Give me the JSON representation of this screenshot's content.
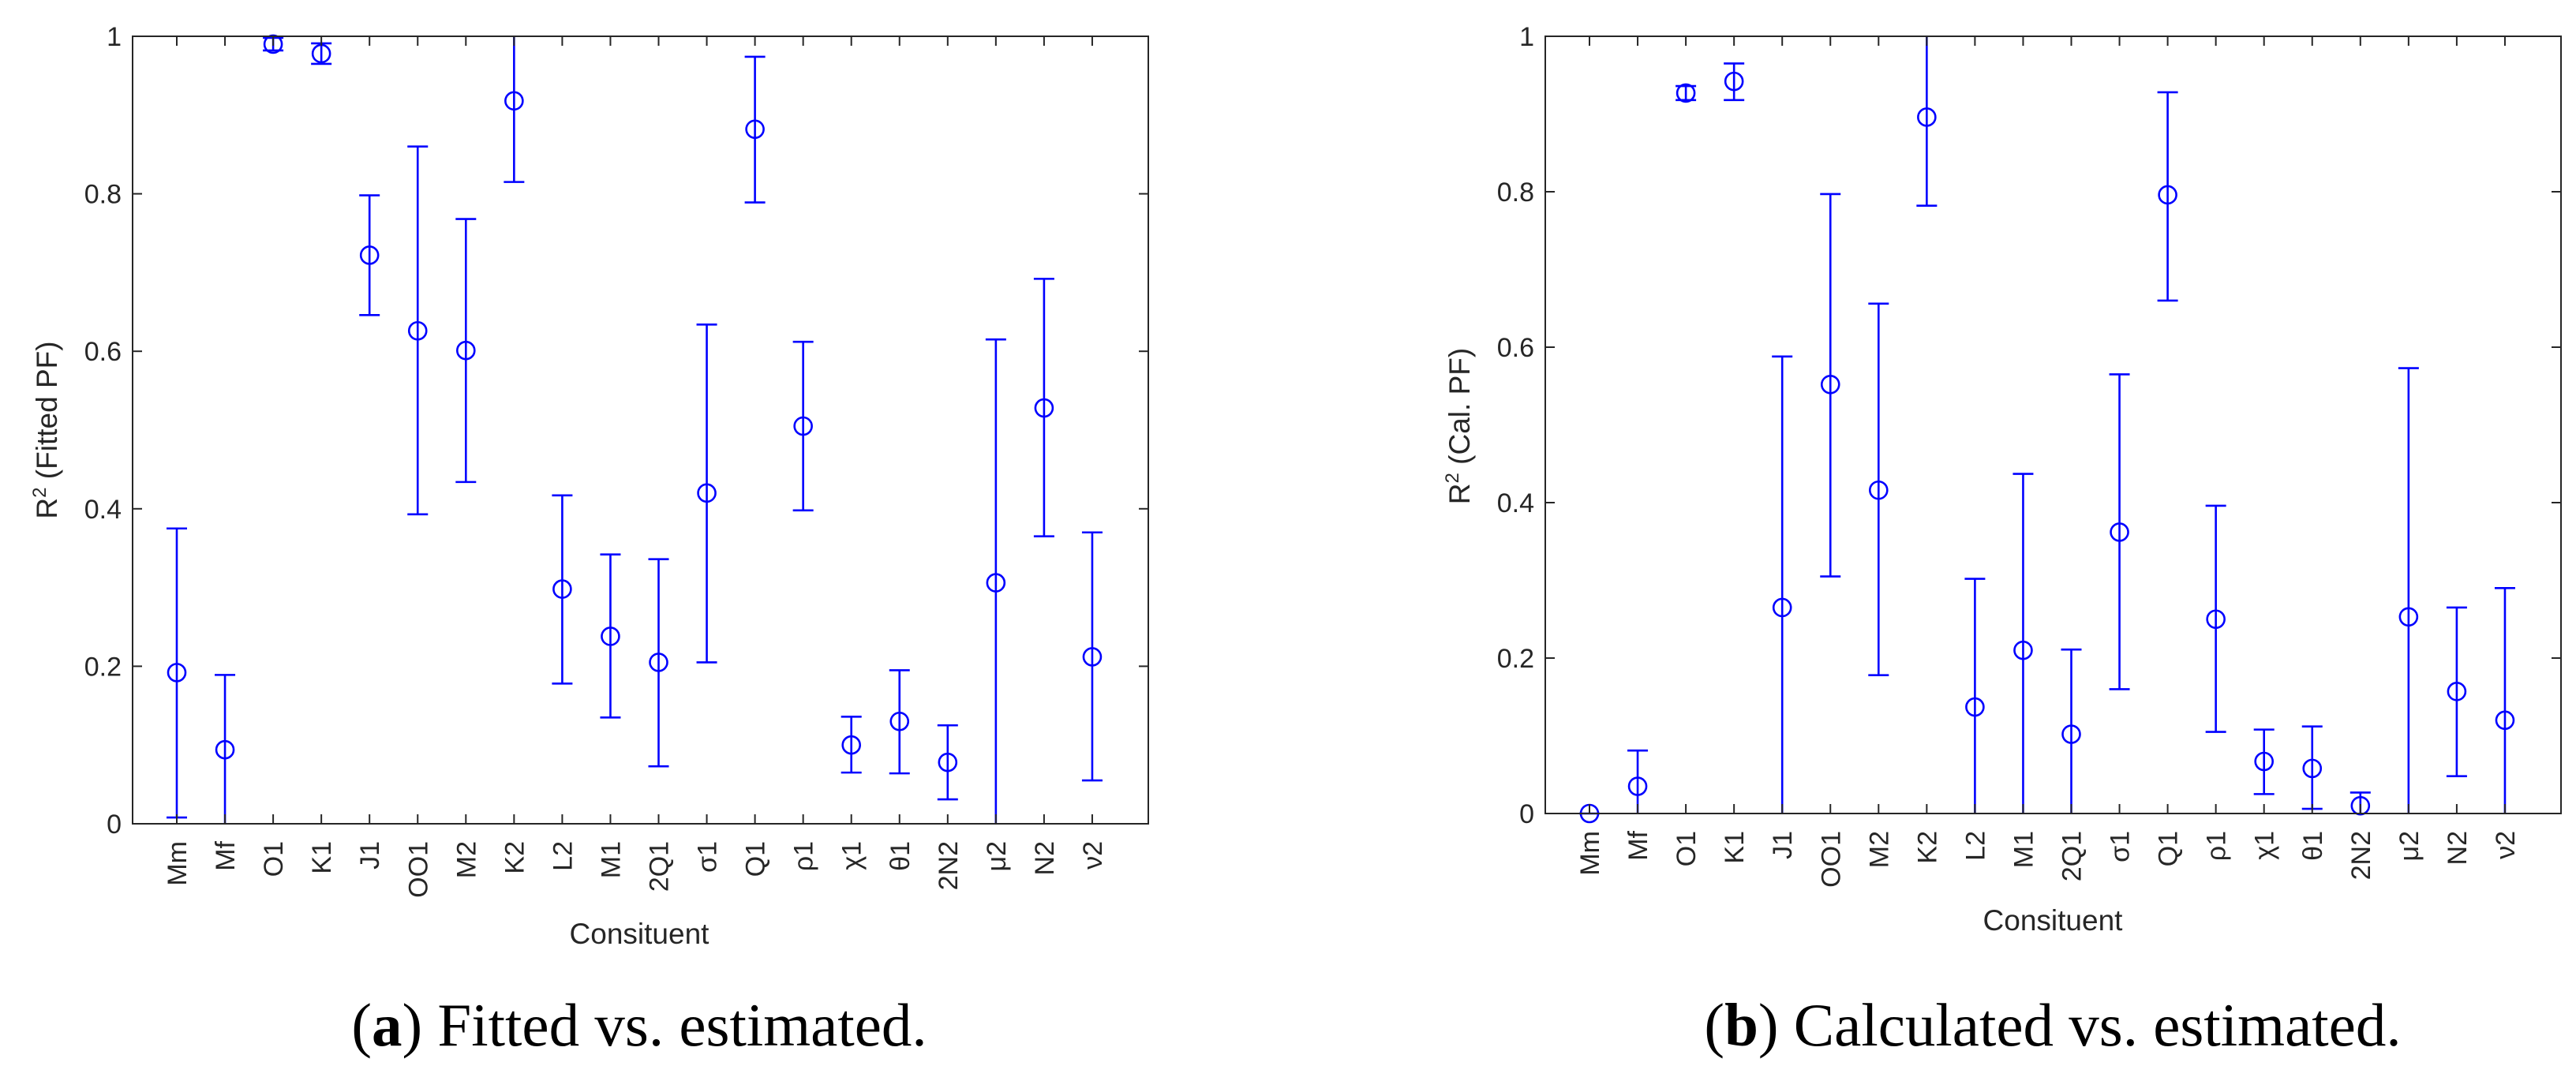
{
  "chart_data": [
    {
      "type": "errorbar",
      "caption_letter": "a",
      "caption_text": "Fitted vs. estimated.",
      "xlabel": "Consituent",
      "ylabel_main": "R",
      "ylabel_sup": "2",
      "ylabel_rest": " (Fitted PF)",
      "ylim": [
        0,
        1
      ],
      "yticks": [
        "0",
        "0.2",
        "0.4",
        "0.6",
        "0.8",
        "1"
      ],
      "categories": [
        "Mm",
        "Mf",
        "O1",
        "K1",
        "J1",
        "OO1",
        "M2",
        "K2",
        "L2",
        "M1",
        "2Q1",
        "σ1",
        "Q1",
        "ρ1",
        "χ1",
        "θ1",
        "2N2",
        "μ2",
        "N2",
        "ν2"
      ],
      "values": [
        0.192,
        0.094,
        0.99,
        0.978,
        0.722,
        0.626,
        0.601,
        0.918,
        0.298,
        0.238,
        0.205,
        0.42,
        0.882,
        0.505,
        0.1,
        0.13,
        0.078,
        0.306,
        0.528,
        0.212
      ],
      "lower": [
        0.008,
        0.0,
        0.982,
        0.965,
        0.646,
        0.393,
        0.434,
        0.815,
        0.178,
        0.135,
        0.073,
        0.205,
        0.789,
        0.398,
        0.065,
        0.064,
        0.031,
        0.0,
        0.365,
        0.055
      ],
      "upper": [
        0.375,
        0.189,
        0.998,
        0.991,
        0.798,
        0.86,
        0.768,
        1.0,
        0.417,
        0.342,
        0.336,
        0.634,
        0.974,
        0.612,
        0.136,
        0.195,
        0.125,
        0.615,
        0.692,
        0.37
      ]
    },
    {
      "type": "errorbar",
      "caption_letter": "b",
      "caption_text": "Calculated vs. estimated.",
      "xlabel": "Consituent",
      "ylabel_main": "R",
      "ylabel_sup": "2",
      "ylabel_rest": " (Cal. PF)",
      "ylim": [
        0,
        1
      ],
      "yticks": [
        "0",
        "0.2",
        "0.4",
        "0.6",
        "0.8",
        "1"
      ],
      "categories": [
        "Mm",
        "Mf",
        "O1",
        "K1",
        "J1",
        "OO1",
        "M2",
        "K2",
        "L2",
        "M1",
        "2Q1",
        "σ1",
        "Q1",
        "ρ1",
        "χ1",
        "θ1",
        "2N2",
        "μ2",
        "N2",
        "ν2"
      ],
      "values": [
        0.0,
        0.035,
        0.927,
        0.942,
        0.265,
        0.552,
        0.416,
        0.896,
        0.137,
        0.21,
        0.102,
        0.362,
        0.796,
        0.25,
        0.067,
        0.058,
        0.01,
        0.253,
        0.157,
        0.12
      ],
      "lower": [
        0.0,
        0.0,
        0.918,
        0.918,
        0.0,
        0.305,
        0.178,
        0.782,
        0.0,
        0.0,
        0.0,
        0.16,
        0.66,
        0.105,
        0.025,
        0.006,
        0.0,
        0.0,
        0.048,
        0.0
      ],
      "upper": [
        0.0,
        0.081,
        0.936,
        0.965,
        0.588,
        0.797,
        0.656,
        1.0,
        0.302,
        0.437,
        0.211,
        0.565,
        0.928,
        0.396,
        0.108,
        0.112,
        0.027,
        0.573,
        0.265,
        0.29
      ]
    }
  ]
}
